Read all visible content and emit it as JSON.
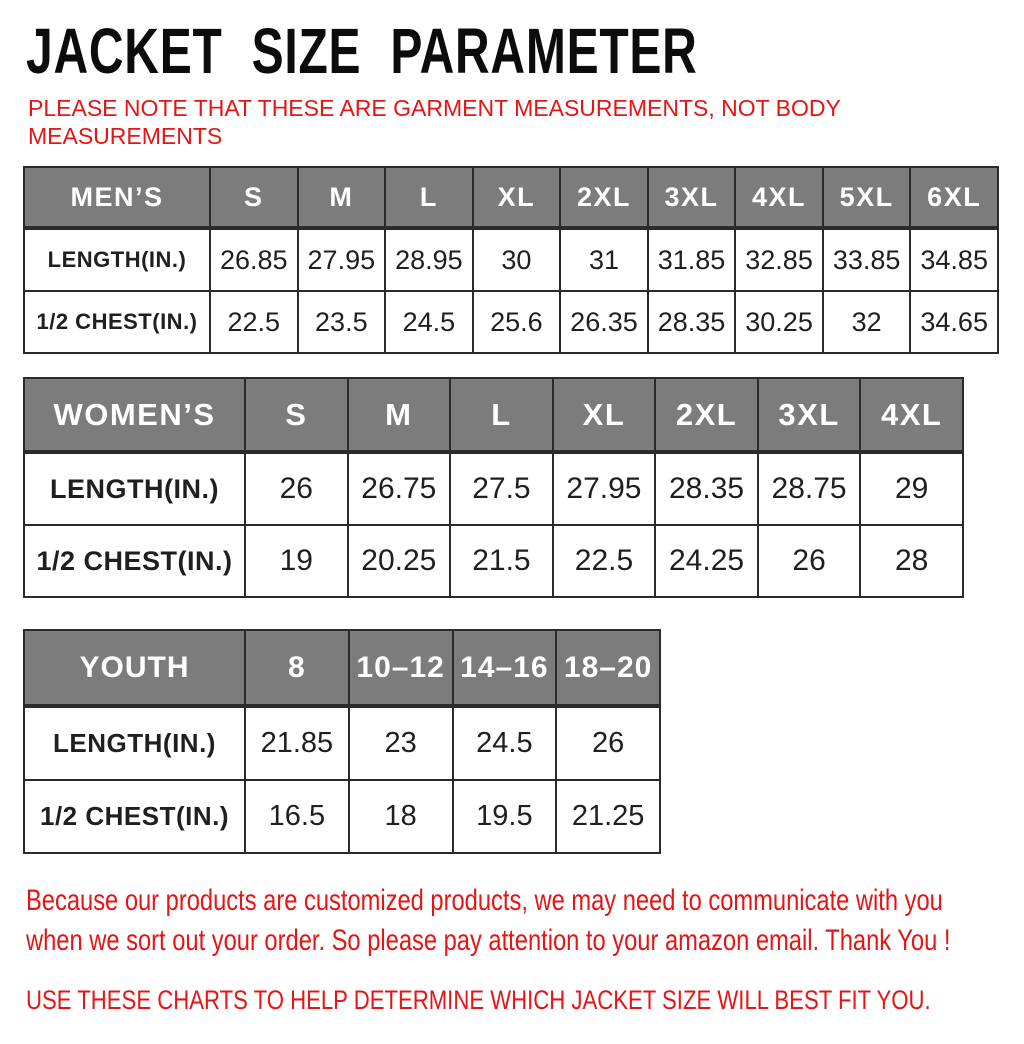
{
  "page": {
    "title": "JACKET SIZE PARAMETER",
    "note": {
      "line1": "PLEASE NOTE THAT THESE ARE GARMENT MEASUREMENTS, NOT BODY",
      "line2": "MEASUREMENTS"
    },
    "footer": {
      "line1": "Because our products are customized products, we may need to communicate with you",
      "line2": "when we sort out your order. So please pay attention to your amazon email. Thank You !",
      "caps": "USE THESE CHARTS TO HELP DETERMINE WHICH JACKET SIZE WILL BEST FIT YOU."
    }
  },
  "colors": {
    "accent_red": "#e61414",
    "header_gray": "#7c7c7c",
    "border_black": "#2b2b2b",
    "title_black": "#0c0c0c"
  },
  "tables": [
    {
      "id": "mens",
      "header_label": "MEN’S",
      "sizes": [
        "S",
        "M",
        "L",
        "XL",
        "2XL",
        "3XL",
        "4XL",
        "5XL",
        "6XL"
      ],
      "rows": [
        {
          "label": "LENGTH(IN.)",
          "values": [
            "26.85",
            "27.95",
            "28.95",
            "30",
            "31",
            "31.85",
            "32.85",
            "33.85",
            "34.85"
          ]
        },
        {
          "label": "1/2 CHEST(IN.)",
          "values": [
            "22.5",
            "23.5",
            "24.5",
            "25.6",
            "26.35",
            "28.35",
            "30.25",
            "32",
            "34.65"
          ]
        }
      ]
    },
    {
      "id": "womens",
      "header_label": "WOMEN’S",
      "sizes": [
        "S",
        "M",
        "L",
        "XL",
        "2XL",
        "3XL",
        "4XL"
      ],
      "rows": [
        {
          "label": "LENGTH(IN.)",
          "values": [
            "26",
            "26.75",
            "27.5",
            "27.95",
            "28.35",
            "28.75",
            "29"
          ]
        },
        {
          "label": "1/2 CHEST(IN.)",
          "values": [
            "19",
            "20.25",
            "21.5",
            "22.5",
            "24.25",
            "26",
            "28"
          ]
        }
      ]
    },
    {
      "id": "youth",
      "header_label": "YOUTH",
      "sizes": [
        "8",
        "10–12",
        "14–16",
        "18–20"
      ],
      "rows": [
        {
          "label": "LENGTH(IN.)",
          "values": [
            "21.85",
            "23",
            "24.5",
            "26"
          ]
        },
        {
          "label": "1/2 CHEST(IN.)",
          "values": [
            "16.5",
            "18",
            "19.5",
            "21.25"
          ]
        }
      ]
    }
  ]
}
